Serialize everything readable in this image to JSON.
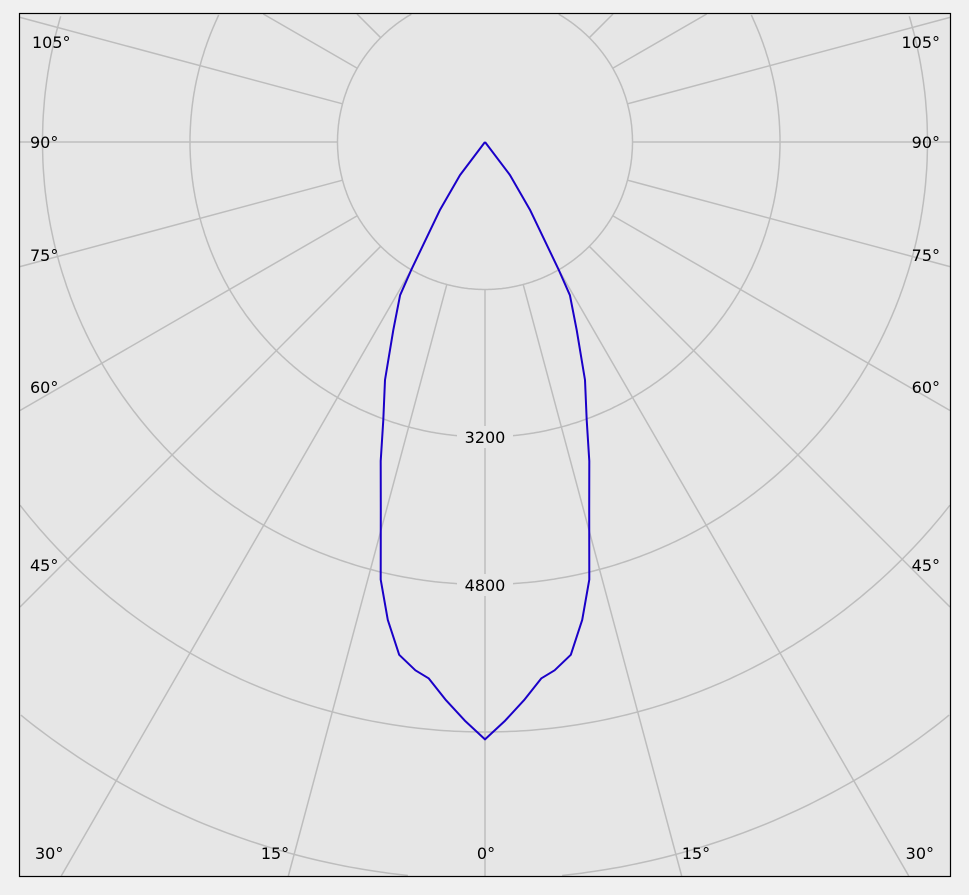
{
  "chart_data": {
    "type": "polar-line",
    "title": "",
    "radial_unit": "",
    "radial_ticks": [
      1600,
      3200,
      4800,
      6400,
      8000,
      9600
    ],
    "radial_tick_labels": [
      "3200",
      "4800"
    ],
    "angle_step_deg": 15,
    "angle_labels_left": [
      "105°",
      "90°",
      "75°",
      "60°",
      "45°",
      "30°"
    ],
    "angle_labels_bottom": [
      "30°",
      "15°",
      "0°",
      "15°",
      "30°"
    ],
    "angle_labels_right": [
      "105°",
      "90°",
      "75°",
      "60°",
      "45°",
      "30°"
    ],
    "grid": true,
    "symmetric": true,
    "series": [
      {
        "color": "#1a00c8",
        "angles_deg": [
          0,
          2,
          4,
          6,
          7.5,
          9.5,
          11.5,
          13.4,
          15.8,
          18.1,
          20.1,
          22.8,
          26,
          29,
          30,
          33.5,
          37,
          45
        ],
        "values": [
          6480,
          6280,
          6070,
          5850,
          5780,
          5640,
          5290,
          4880,
          4150,
          3640,
          3210,
          2800,
          2270,
          1900,
          1590,
          890,
          450,
          0
        ]
      }
    ],
    "colors": {
      "plot_background": "#e6e6e6",
      "grid": "#bdbdbd",
      "frame": "#000000"
    }
  }
}
